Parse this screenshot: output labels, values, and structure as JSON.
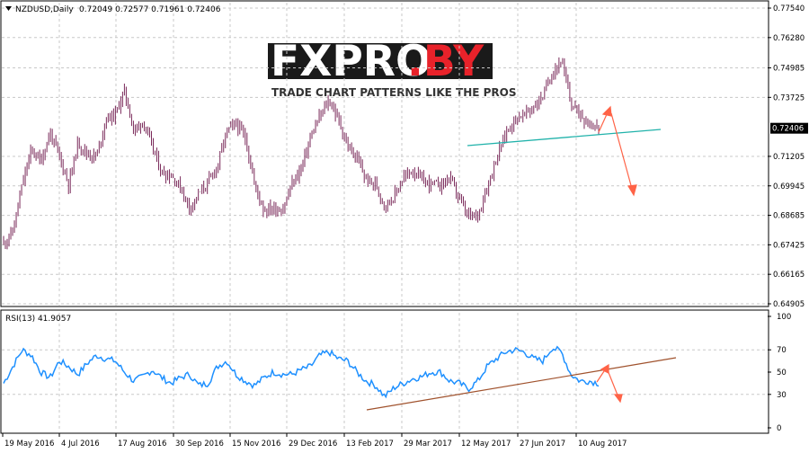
{
  "header": {
    "symbol": "NZDUSD,Daily",
    "ohlc": "0.72049 0.72577 0.71961 0.72406"
  },
  "indicator": {
    "label": "RSI(13) 41.9057"
  },
  "watermark": {
    "logo_text_1": "FXPRO",
    "logo_text_2": ".BY",
    "tagline": "TRADE CHART PATTERNS LIKE THE PROS"
  },
  "colors": {
    "candle": "#7a2a5a",
    "rsi_line": "#1e90ff",
    "support_line": "#20b2aa",
    "rsi_trend": "#a0522d",
    "arrow": "#ff6347",
    "price_box": "#000000",
    "grid": "#c8c8c8"
  },
  "chart_data": [
    {
      "type": "candlestick",
      "title": "NZDUSD,Daily",
      "ylim": [
        0.64905,
        0.7754
      ],
      "y_ticks": [
        "0.77540",
        "0.76280",
        "0.74985",
        "0.73725",
        "0.72406",
        "0.71205",
        "0.69945",
        "0.68685",
        "0.67425",
        "0.66165",
        "0.64905"
      ],
      "current_price": "0.72406",
      "x_ticks": [
        "19 May 2016",
        "4 Jul 2016",
        "17 Aug 2016",
        "30 Sep 2016",
        "15 Nov 2016",
        "29 Dec 2016",
        "13 Feb 2017",
        "29 Mar 2017",
        "12 May 2017",
        "27 Jun 2017",
        "10 Aug 2017"
      ],
      "close_path": [
        0.675,
        0.68,
        0.7,
        0.715,
        0.71,
        0.722,
        0.712,
        0.7,
        0.718,
        0.713,
        0.712,
        0.728,
        0.73,
        0.74,
        0.723,
        0.727,
        0.716,
        0.705,
        0.704,
        0.699,
        0.69,
        0.696,
        0.701,
        0.708,
        0.723,
        0.726,
        0.72,
        0.7,
        0.689,
        0.69,
        0.689,
        0.7,
        0.707,
        0.72,
        0.729,
        0.736,
        0.728,
        0.716,
        0.711,
        0.702,
        0.7,
        0.691,
        0.695,
        0.703,
        0.706,
        0.702,
        0.7,
        0.7,
        0.703,
        0.694,
        0.686,
        0.687,
        0.699,
        0.711,
        0.722,
        0.728,
        0.73,
        0.733,
        0.738,
        0.748,
        0.753,
        0.735,
        0.73,
        0.726,
        0.724
      ]
    },
    {
      "type": "line",
      "title": "RSI(13) 41.9057",
      "ylim": [
        0,
        100
      ],
      "y_ticks": [
        "100",
        "70",
        "50",
        "30",
        "0"
      ],
      "values": [
        40,
        55,
        70,
        65,
        50,
        45,
        60,
        55,
        48,
        58,
        65,
        62,
        60,
        50,
        42,
        46,
        52,
        45,
        40,
        45,
        48,
        38,
        40,
        55,
        60,
        48,
        42,
        38,
        45,
        50,
        48,
        48,
        52,
        55,
        65,
        68,
        62,
        60,
        50,
        42,
        38,
        28,
        36,
        40,
        44,
        46,
        50,
        50,
        42,
        40,
        35,
        42,
        55,
        62,
        68,
        70,
        68,
        62,
        60,
        72,
        68,
        48,
        42,
        42,
        40
      ]
    }
  ]
}
